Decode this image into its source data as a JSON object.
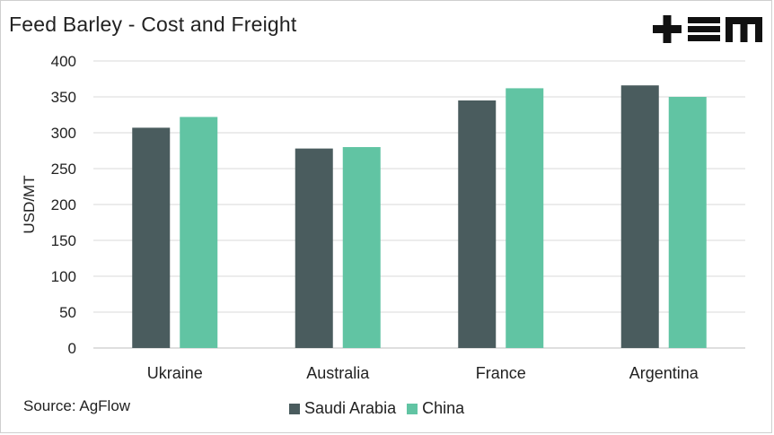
{
  "title": "Feed Barley - Cost and Freight",
  "source": "Source: AgFlow",
  "logo": "tem-logo",
  "chart_data": {
    "type": "bar",
    "title": "Feed Barley - Cost and Freight",
    "xlabel": "",
    "ylabel": "USD/MT",
    "ylim": [
      0,
      400
    ],
    "yticks": [
      0,
      50,
      100,
      150,
      200,
      250,
      300,
      350,
      400
    ],
    "grid": true,
    "legend": "bottom",
    "categories": [
      "Ukraine",
      "Australia",
      "France",
      "Argentina"
    ],
    "series": [
      {
        "name": "Saudi Arabia",
        "color": "#4a5c5e",
        "values": [
          307,
          278,
          345,
          366
        ]
      },
      {
        "name": "China",
        "color": "#61c4a3",
        "values": [
          322,
          280,
          362,
          350
        ]
      }
    ]
  }
}
